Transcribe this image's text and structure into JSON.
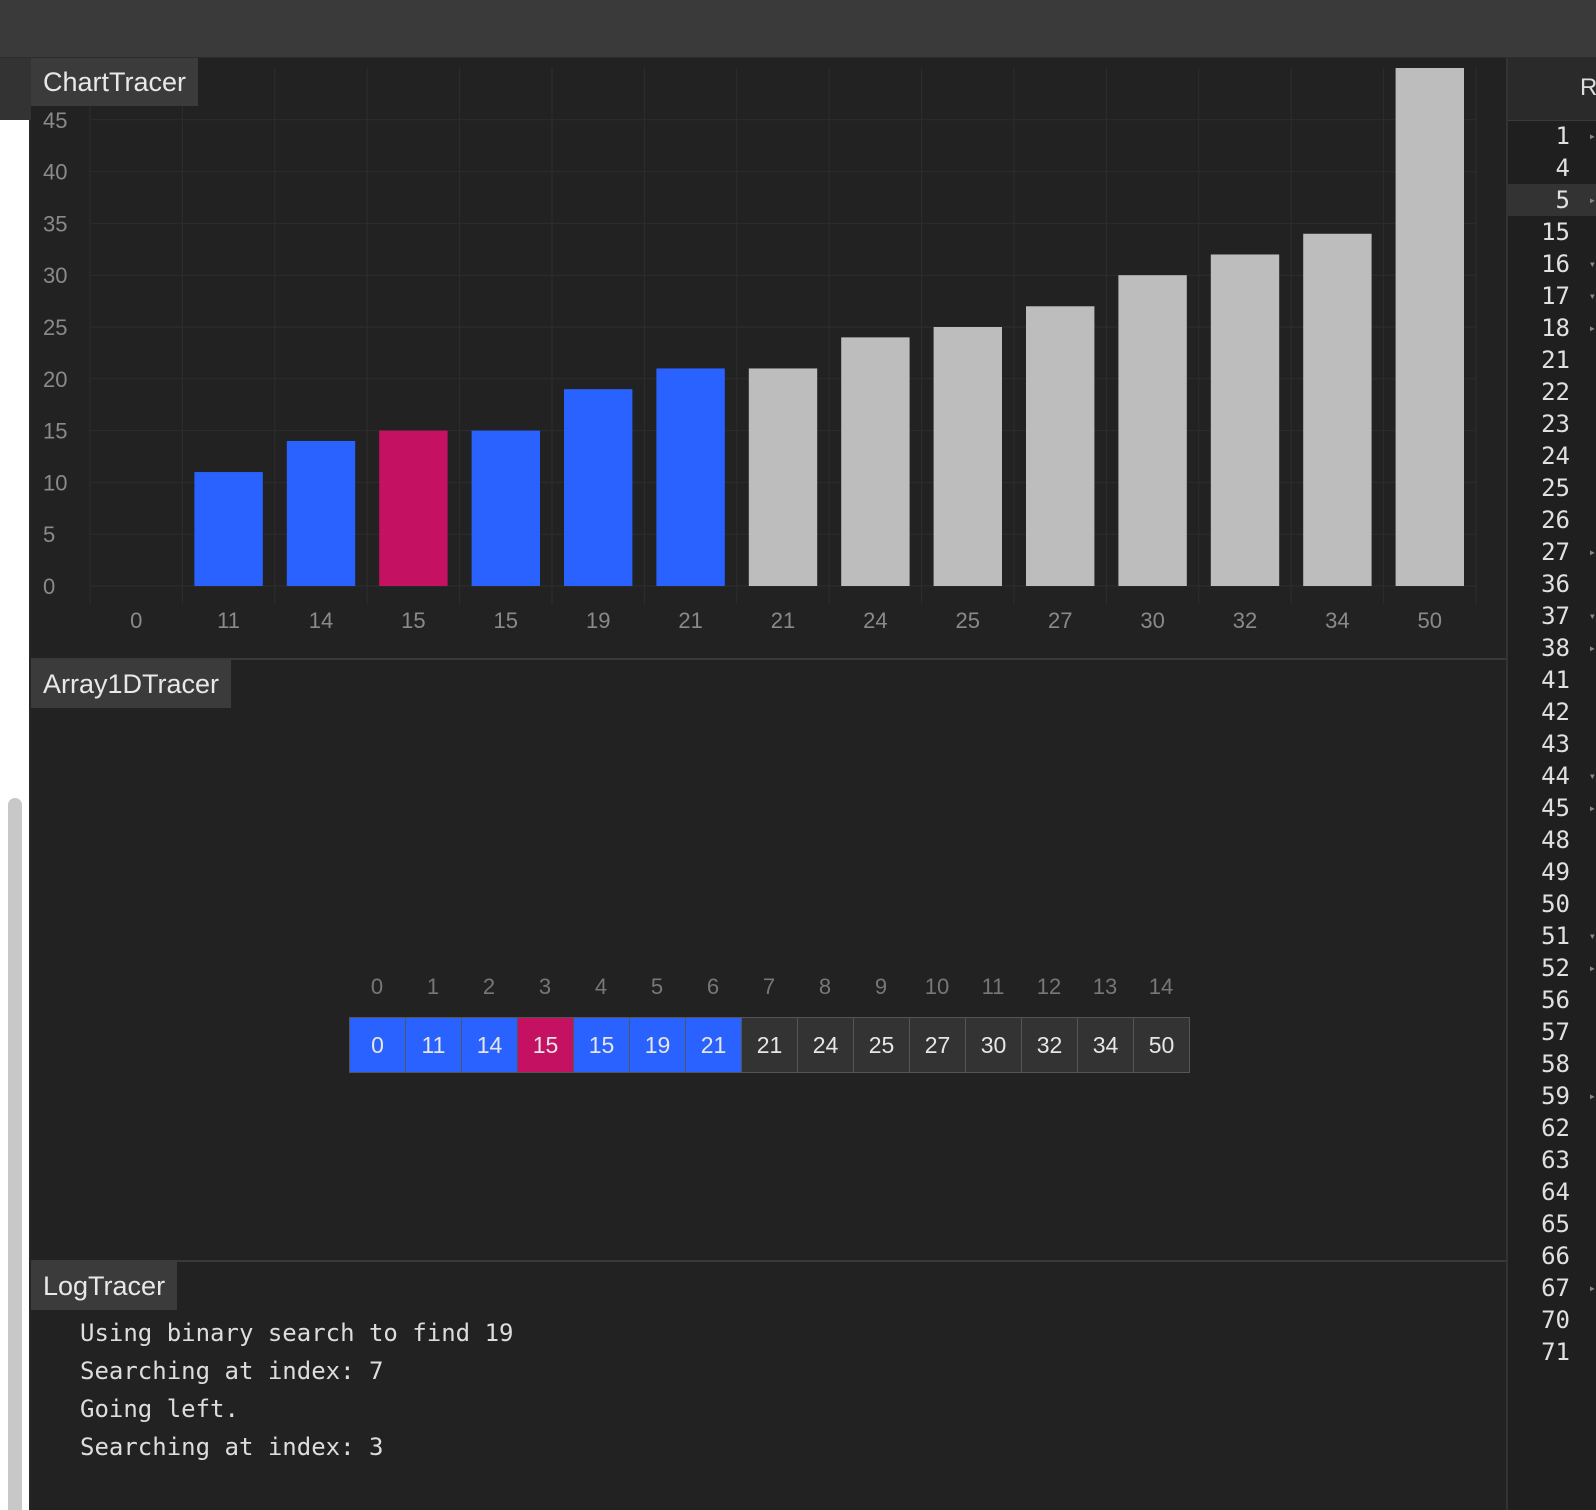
{
  "panels": {
    "chart_title": "ChartTracer",
    "array_title": "Array1DTracer",
    "log_title": "LogTracer"
  },
  "colors": {
    "selected": "#2962ff",
    "patched": "#c51162",
    "default": "#bdbdbd",
    "cell_default": "#333333"
  },
  "chart_data": {
    "type": "bar",
    "categories": [
      "0",
      "11",
      "14",
      "15",
      "15",
      "19",
      "21",
      "21",
      "24",
      "25",
      "27",
      "30",
      "32",
      "34",
      "50"
    ],
    "values": [
      0,
      11,
      14,
      15,
      15,
      19,
      21,
      21,
      24,
      25,
      27,
      30,
      32,
      34,
      50
    ],
    "states": [
      "selected",
      "selected",
      "selected",
      "patched",
      "selected",
      "selected",
      "selected",
      "default",
      "default",
      "default",
      "default",
      "default",
      "default",
      "default",
      "default"
    ],
    "yticks": [
      0,
      5,
      10,
      15,
      20,
      25,
      30,
      35,
      40,
      45
    ],
    "ylim": [
      0,
      50
    ],
    "grid": true
  },
  "array": {
    "indices": [
      "0",
      "1",
      "2",
      "3",
      "4",
      "5",
      "6",
      "7",
      "8",
      "9",
      "10",
      "11",
      "12",
      "13",
      "14"
    ],
    "values": [
      "0",
      "11",
      "14",
      "15",
      "15",
      "19",
      "21",
      "21",
      "24",
      "25",
      "27",
      "30",
      "32",
      "34",
      "50"
    ],
    "states": [
      "selected",
      "selected",
      "selected",
      "patched",
      "selected",
      "selected",
      "selected",
      "default",
      "default",
      "default",
      "default",
      "default",
      "default",
      "default",
      "default"
    ]
  },
  "log": {
    "lines": [
      "Using binary search to find 19",
      "Searching at index: 7",
      "Going left.",
      "Searching at index: 3"
    ]
  },
  "editor": {
    "header_letter": "R",
    "line_numbers": [
      "1",
      "4",
      "5",
      "15",
      "16",
      "17",
      "18",
      "21",
      "22",
      "23",
      "24",
      "25",
      "26",
      "27",
      "36",
      "37",
      "38",
      "41",
      "42",
      "43",
      "44",
      "45",
      "48",
      "49",
      "50",
      "51",
      "52",
      "56",
      "57",
      "58",
      "59",
      "62",
      "63",
      "64",
      "65",
      "66",
      "67",
      "70",
      "71"
    ],
    "folds": [
      "right",
      "",
      "right",
      "",
      "down",
      "down",
      "right",
      "",
      "",
      "",
      "",
      "",
      "",
      "right",
      "",
      "down",
      "right",
      "",
      "",
      "",
      "down",
      "right",
      "",
      "",
      "",
      "down",
      "right",
      "",
      "",
      "",
      "right",
      "",
      "",
      "",
      "",
      "",
      "right",
      "",
      ""
    ],
    "active_line": "5"
  }
}
